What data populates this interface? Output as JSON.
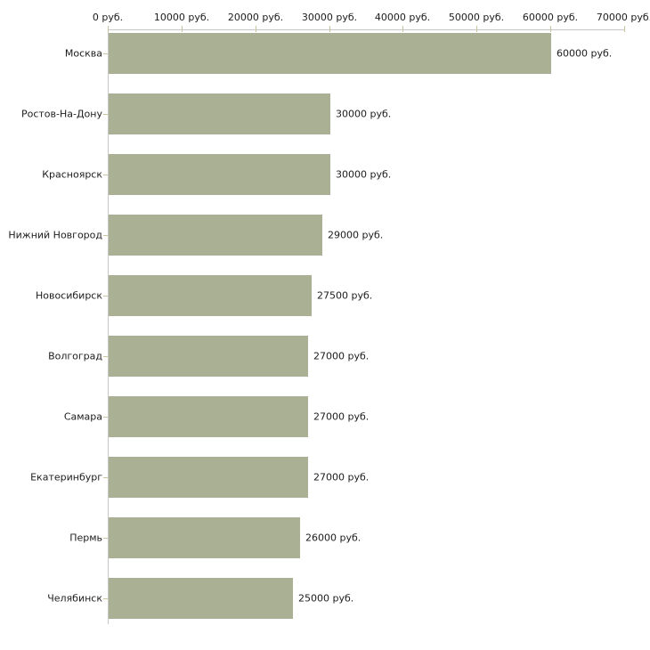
{
  "chart_data": {
    "type": "bar",
    "orientation": "horizontal",
    "title": "",
    "xlabel": "",
    "ylabel": "",
    "unit": "руб.",
    "xlim": [
      0,
      70000
    ],
    "grid": false,
    "legend": null,
    "categories": [
      "Москва",
      "Ростов-На-Дону",
      "Красноярск",
      "Нижний Новгород",
      "Новосибирск",
      "Волгоград",
      "Самара",
      "Екатеринбург",
      "Пермь",
      "Челябинск"
    ],
    "values": [
      60000,
      30000,
      30000,
      29000,
      27500,
      27000,
      27000,
      27000,
      26000,
      25000
    ],
    "value_labels": [
      "60000 руб.",
      "30000 руб.",
      "30000 руб.",
      "29000 руб.",
      "27500 руб.",
      "27000 руб.",
      "27000 руб.",
      "27000 руб.",
      "26000 руб.",
      "25000 руб."
    ],
    "x_ticks": [
      0,
      10000,
      20000,
      30000,
      40000,
      50000,
      60000,
      70000
    ],
    "x_tick_labels": [
      "0 руб.",
      "10000 руб.",
      "20000 руб.",
      "30000 руб.",
      "40000 руб.",
      "50000 руб.",
      "60000 руб.",
      "70000 руб."
    ],
    "colors": {
      "bar": "#aab094",
      "axis_line": "#c6c6c6",
      "tick_mark": "#c9c49c",
      "text": "#1c1c1c",
      "background": "#ffffff"
    }
  }
}
